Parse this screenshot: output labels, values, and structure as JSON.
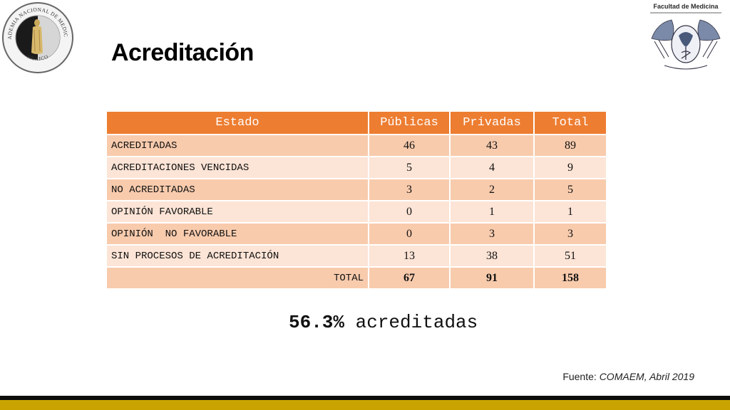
{
  "title": "Acreditación",
  "logo_left": {
    "text_top": "ACADEMIA NACIONAL DE MEDICINA",
    "text_bottom": "MÉXICO"
  },
  "logo_right": {
    "caption": "Facultad de Medicina"
  },
  "table": {
    "headers": [
      "Estado",
      "Públicas",
      "Privadas",
      "Total"
    ],
    "rows": [
      {
        "estado": "ACREDITADAS",
        "publicas": "46",
        "privadas": "43",
        "total": "89"
      },
      {
        "estado": "ACREDITACIONES VENCIDAS",
        "publicas": "5",
        "privadas": "4",
        "total": "9"
      },
      {
        "estado": "NO ACREDITADAS",
        "publicas": "3",
        "privadas": "2",
        "total": "5"
      },
      {
        "estado": "OPINIÓN FAVORABLE",
        "publicas": "0",
        "privadas": "1",
        "total": "1"
      },
      {
        "estado": "OPINIÓN  NO FAVORABLE",
        "publicas": "0",
        "privadas": "3",
        "total": "3"
      },
      {
        "estado": "SIN PROCESOS DE ACREDITACIÓN",
        "publicas": "13",
        "privadas": "38",
        "total": "51"
      }
    ],
    "total_row": {
      "estado": "TOTAL",
      "publicas": "67",
      "privadas": "91",
      "total": "158"
    }
  },
  "summary": {
    "percent": "56.3%",
    "text": "acreditadas"
  },
  "source": {
    "prefix": "Fuente: ",
    "text": "COMAEM, Abril 2019"
  },
  "colors": {
    "header_orange": "#ED7D31",
    "row_dark": "#F8CBAD",
    "row_light": "#FCE4D6",
    "bottom_gold": "#C9A400",
    "bottom_black": "#0d0d0d"
  }
}
